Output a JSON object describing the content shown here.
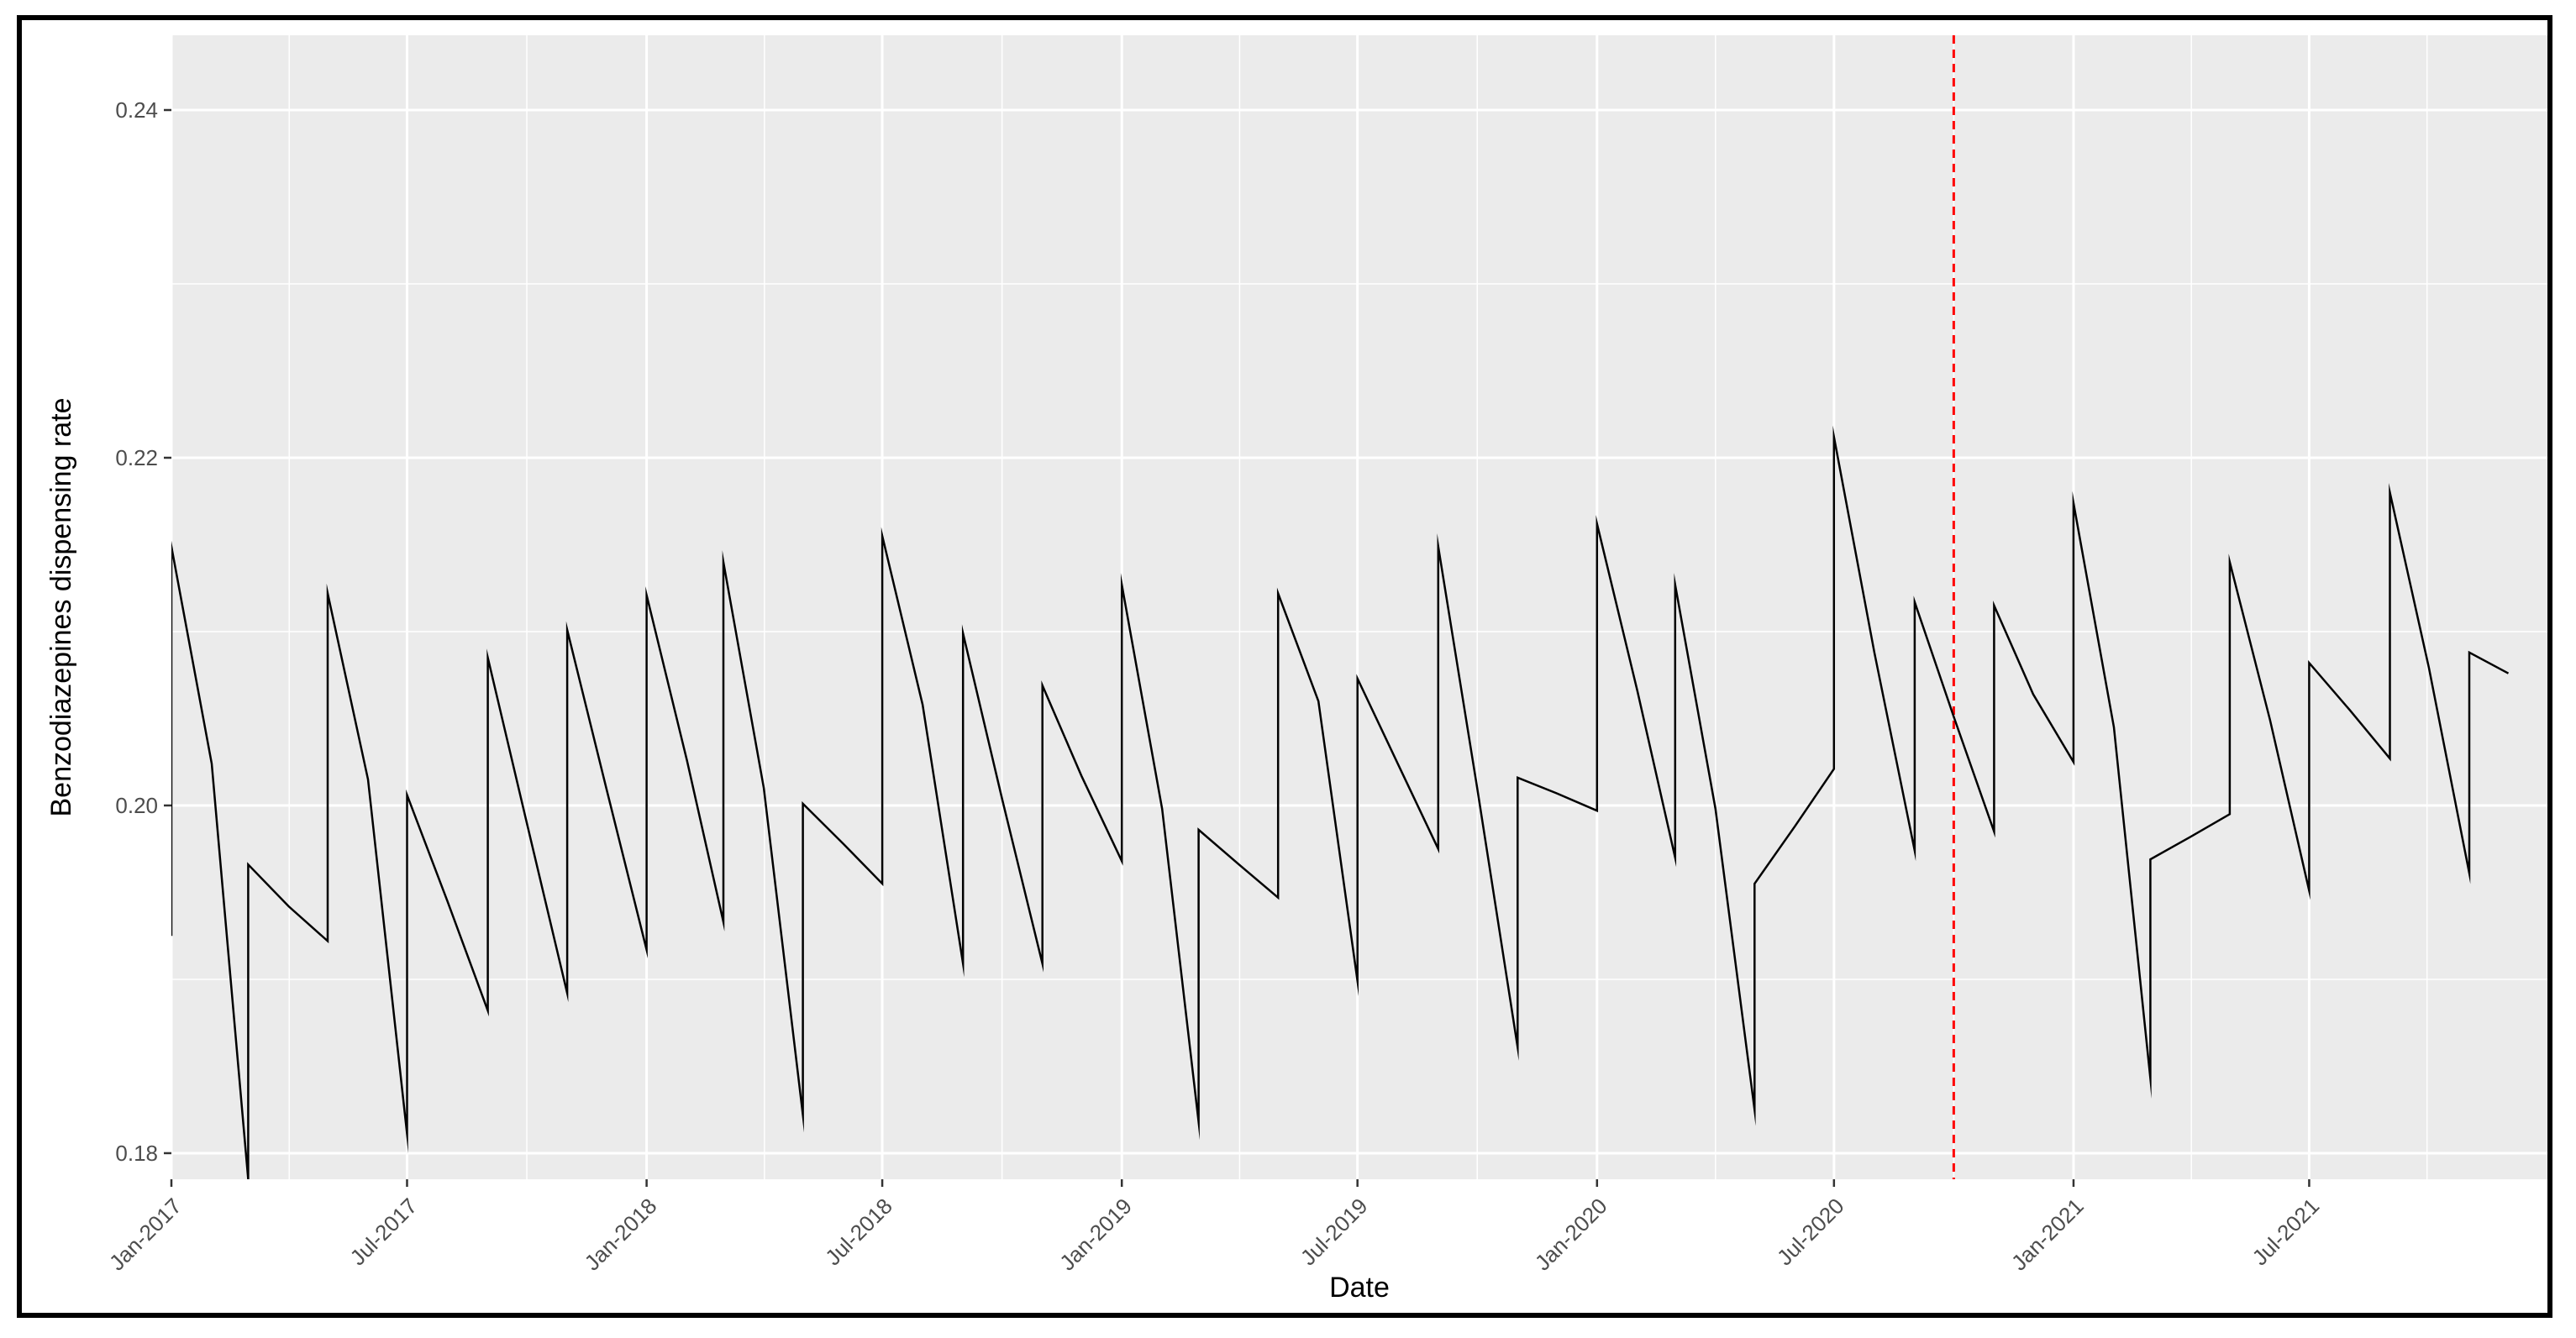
{
  "chart_data": {
    "type": "line",
    "title": "",
    "xlabel": "Date",
    "ylabel": "Benzodiazepines dispensing rate",
    "x_tick_labels": [
      "Jan-2017",
      "Jul-2017",
      "Jan-2018",
      "Jul-2018",
      "Jan-2019",
      "Jul-2019",
      "Jan-2020",
      "Jul-2020",
      "Jan-2021",
      "Jul-2021"
    ],
    "x_tick_dates": [
      "2017-01-01",
      "2017-07-01",
      "2018-01-01",
      "2018-07-01",
      "2019-01-01",
      "2019-07-01",
      "2020-01-01",
      "2020-07-01",
      "2021-01-01",
      "2021-07-01"
    ],
    "xlim": [
      "2017-01-01",
      "2021-12-31"
    ],
    "y_tick_labels": [
      "0.18",
      "0.20",
      "0.22",
      "0.24"
    ],
    "y_ticks": [
      0.18,
      0.2,
      0.22,
      0.24
    ],
    "ylim": [
      0.1785,
      0.2443
    ],
    "grid": true,
    "background_color": "#ebebeb",
    "grid_color": "#ffffff",
    "line_color": "#000000",
    "reference_line": {
      "date": "2020-10-01",
      "color": "#ff0000",
      "style": "dashed"
    },
    "series": [
      {
        "points": [
          [
            "2017-01-01",
            0.1925
          ],
          [
            "2017-01-01",
            0.2149
          ],
          [
            "2017-02-01",
            0.2024
          ],
          [
            "2017-03-01",
            0.1785
          ],
          [
            "2017-03-01",
            0.1966
          ],
          [
            "2017-04-01",
            0.1942
          ],
          [
            "2017-05-01",
            0.1922
          ],
          [
            "2017-05-01",
            0.2122
          ],
          [
            "2017-06-01",
            0.2015
          ],
          [
            "2017-07-01",
            0.1811
          ],
          [
            "2017-07-01",
            0.2006
          ],
          [
            "2017-08-01",
            0.1945
          ],
          [
            "2017-09-01",
            0.1882
          ],
          [
            "2017-09-01",
            0.2085
          ],
          [
            "2017-10-01",
            0.199
          ],
          [
            "2017-11-01",
            0.1892
          ],
          [
            "2017-11-01",
            0.2101
          ],
          [
            "2017-12-01",
            0.201
          ],
          [
            "2018-01-01",
            0.1917
          ],
          [
            "2018-01-01",
            0.2121
          ],
          [
            "2018-02-01",
            0.2026
          ],
          [
            "2018-03-01",
            0.1933
          ],
          [
            "2018-03-01",
            0.214
          ],
          [
            "2018-04-01",
            0.201
          ],
          [
            "2018-05-01",
            0.1822
          ],
          [
            "2018-05-01",
            0.2001
          ],
          [
            "2018-06-01",
            0.1978
          ],
          [
            "2018-07-01",
            0.1955
          ],
          [
            "2018-07-01",
            0.2155
          ],
          [
            "2018-08-01",
            0.2058
          ],
          [
            "2018-09-01",
            0.1909
          ],
          [
            "2018-09-01",
            0.2099
          ],
          [
            "2018-10-01",
            0.2004
          ],
          [
            "2018-11-01",
            0.1909
          ],
          [
            "2018-11-01",
            0.2069
          ],
          [
            "2018-12-01",
            0.2017
          ],
          [
            "2019-01-01",
            0.1968
          ],
          [
            "2019-01-01",
            0.2127
          ],
          [
            "2019-02-01",
            0.1998
          ],
          [
            "2019-03-01",
            0.1818
          ],
          [
            "2019-03-01",
            0.1986
          ],
          [
            "2019-04-01",
            0.1966
          ],
          [
            "2019-05-01",
            0.1947
          ],
          [
            "2019-05-01",
            0.2122
          ],
          [
            "2019-06-01",
            0.206
          ],
          [
            "2019-07-01",
            0.1899
          ],
          [
            "2019-07-01",
            0.2073
          ],
          [
            "2019-08-01",
            0.2024
          ],
          [
            "2019-09-01",
            0.1975
          ],
          [
            "2019-09-01",
            0.2149
          ],
          [
            "2019-10-01",
            0.201
          ],
          [
            "2019-11-01",
            0.1861
          ],
          [
            "2019-11-01",
            0.2016
          ],
          [
            "2019-12-01",
            0.2007
          ],
          [
            "2020-01-01",
            0.1997
          ],
          [
            "2020-01-01",
            0.2162
          ],
          [
            "2020-02-01",
            0.2066
          ],
          [
            "2020-03-01",
            0.197
          ],
          [
            "2020-03-01",
            0.2127
          ],
          [
            "2020-04-01",
            0.1998
          ],
          [
            "2020-05-01",
            0.1825
          ],
          [
            "2020-05-01",
            0.1955
          ],
          [
            "2020-06-01",
            0.1988
          ],
          [
            "2020-07-01",
            0.2021
          ],
          [
            "2020-07-01",
            0.2212
          ],
          [
            "2020-08-01",
            0.2088
          ],
          [
            "2020-09-01",
            0.1974
          ],
          [
            "2020-09-01",
            0.2117
          ],
          [
            "2020-10-01",
            0.2051
          ],
          [
            "2020-11-01",
            0.1985
          ],
          [
            "2020-11-01",
            0.2115
          ],
          [
            "2020-12-01",
            0.2064
          ],
          [
            "2021-01-01",
            0.2025
          ],
          [
            "2021-01-01",
            0.2174
          ],
          [
            "2021-02-01",
            0.2045
          ],
          [
            "2021-03-01",
            0.1843
          ],
          [
            "2021-03-01",
            0.1969
          ],
          [
            "2021-04-01",
            0.1982
          ],
          [
            "2021-05-01",
            0.1995
          ],
          [
            "2021-05-01",
            0.214
          ],
          [
            "2021-06-01",
            0.2049
          ],
          [
            "2021-07-01",
            0.1951
          ],
          [
            "2021-07-01",
            0.2082
          ],
          [
            "2021-08-01",
            0.2055
          ],
          [
            "2021-09-01",
            0.2027
          ],
          [
            "2021-09-01",
            0.218
          ],
          [
            "2021-10-01",
            0.2079
          ],
          [
            "2021-11-01",
            0.1961
          ],
          [
            "2021-11-01",
            0.2088
          ],
          [
            "2021-12-01",
            0.2076
          ]
        ]
      }
    ]
  }
}
